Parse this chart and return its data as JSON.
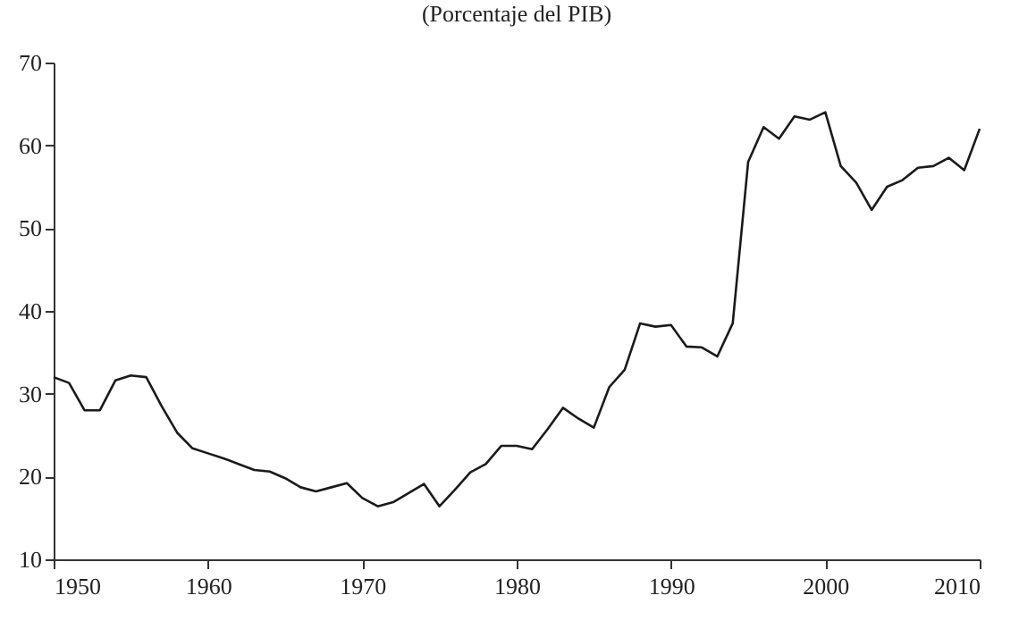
{
  "chart_data": {
    "type": "line",
    "title": "(Porcentaje del PIB)",
    "x": [
      1950,
      1951,
      1952,
      1953,
      1954,
      1955,
      1956,
      1957,
      1958,
      1959,
      1960,
      1961,
      1962,
      1963,
      1964,
      1965,
      1966,
      1967,
      1968,
      1969,
      1970,
      1971,
      1972,
      1973,
      1974,
      1975,
      1976,
      1977,
      1978,
      1979,
      1980,
      1981,
      1982,
      1983,
      1984,
      1985,
      1986,
      1987,
      1988,
      1989,
      1990,
      1991,
      1992,
      1993,
      1994,
      1995,
      1996,
      1997,
      1998,
      1999,
      2000,
      2001,
      2002,
      2003,
      2004,
      2005,
      2006,
      2007,
      2008,
      2009,
      2010
    ],
    "series": [
      {
        "color": "#1a1a1a",
        "values": [
          32,
          31.3,
          28,
          28,
          31.6,
          32.2,
          32,
          28.5,
          25.3,
          23.4,
          22.8,
          22.2,
          21.5,
          20.8,
          20.6,
          19.8,
          18.7,
          18.2,
          18.7,
          19.2,
          17.4,
          16.4,
          16.9,
          18,
          19.1,
          16.4,
          18.4,
          20.5,
          21.5,
          23.7,
          23.7,
          23.3,
          25.7,
          28.3,
          27,
          25.9,
          30.8,
          32.9,
          38.5,
          38.1,
          38.3,
          35.7,
          35.6,
          34.5,
          38.5,
          58,
          62.2,
          60.8,
          63.5,
          63.1,
          64,
          57.5,
          55.5,
          52.2,
          55,
          55.8,
          57.3,
          57.5,
          58.5,
          57,
          62
        ]
      }
    ],
    "xlim": [
      1950,
      2010
    ],
    "xticks": [
      1950,
      1960,
      1970,
      1980,
      1990,
      2000,
      2010
    ],
    "ylim": [
      10,
      70
    ],
    "yticks": [
      10,
      20,
      30,
      40,
      50,
      60,
      70
    ],
    "grid": false,
    "legend": false,
    "marker": "none",
    "line_style": "solid"
  }
}
